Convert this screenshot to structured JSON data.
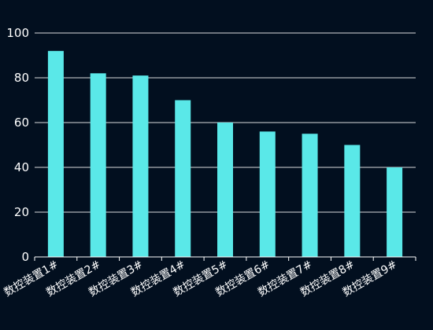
{
  "chart_data": {
    "type": "bar",
    "categories": [
      "数控装置1#",
      "数控装置2#",
      "数控装置3#",
      "数控装置4#",
      "数控装置5#",
      "数控装置6#",
      "数控装置7#",
      "数控装置8#",
      "数控装置9#"
    ],
    "values": [
      92,
      82,
      81,
      70,
      60,
      56,
      55,
      50,
      40
    ],
    "ylim": [
      0,
      100
    ],
    "yticks": [
      0,
      20,
      40,
      60,
      80,
      100
    ],
    "grid": true,
    "bar_color": "#5ae8e8",
    "background": "#020f1f",
    "grid_color": "#ffffff",
    "text_color": "#ffffff"
  }
}
